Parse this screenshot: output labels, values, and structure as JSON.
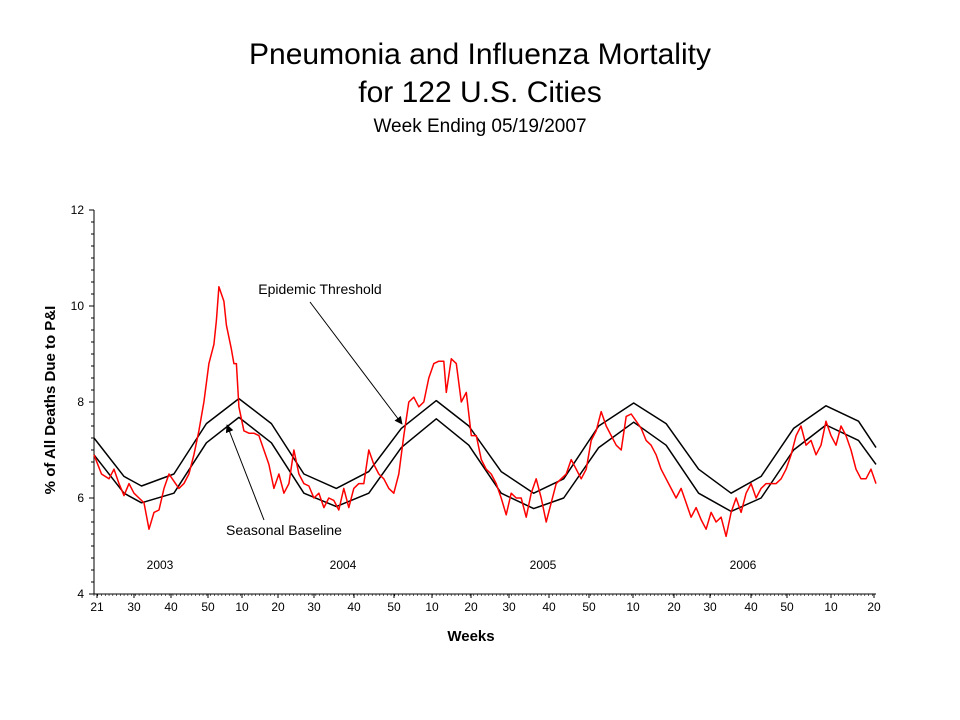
{
  "chart_data": {
    "type": "line",
    "title_lines": [
      "Pneumonia and Influenza Mortality",
      "for 122 U.S. Cities"
    ],
    "subtitle": "Week Ending 05/19/2007",
    "xlabel": "Weeks",
    "ylabel": "% of All Deaths Due to P&I",
    "ylim": [
      4,
      12
    ],
    "y_ticks": [
      4,
      6,
      8,
      10,
      12
    ],
    "x_ticks": [
      "21",
      "30",
      "40",
      "50",
      "10",
      "20",
      "30",
      "40",
      "50",
      "10",
      "20",
      "30",
      "40",
      "50",
      "10",
      "20",
      "30",
      "40",
      "50",
      "10",
      "20"
    ],
    "years": [
      "2003",
      "2004",
      "2005",
      "2006"
    ],
    "annotations": [
      {
        "text": "Epidemic Threshold",
        "target_week": 66
      },
      {
        "text": "Seasonal Baseline",
        "target_week": 27
      }
    ],
    "series": [
      {
        "name": "Epidemic Threshold",
        "color": "#000000",
        "points": [
          [
            0,
            7.25
          ],
          [
            12,
            6.45
          ],
          [
            19,
            6.25
          ],
          [
            32,
            6.5
          ],
          [
            45,
            7.55
          ],
          [
            58,
            8.07
          ],
          [
            71,
            7.55
          ],
          [
            84,
            6.5
          ],
          [
            97,
            6.2
          ],
          [
            110,
            6.55
          ],
          [
            123,
            7.45
          ],
          [
            137,
            8.03
          ],
          [
            150,
            7.5
          ],
          [
            163,
            6.55
          ],
          [
            176,
            6.1
          ],
          [
            188,
            6.4
          ],
          [
            202,
            7.5
          ],
          [
            216,
            7.98
          ],
          [
            229,
            7.55
          ],
          [
            242,
            6.6
          ],
          [
            255,
            6.1
          ],
          [
            267,
            6.45
          ],
          [
            280,
            7.45
          ],
          [
            293,
            7.92
          ],
          [
            306,
            7.6
          ],
          [
            313,
            7.05
          ]
        ]
      },
      {
        "name": "Seasonal Baseline",
        "color": "#000000",
        "points": [
          [
            0,
            6.9
          ],
          [
            12,
            6.1
          ],
          [
            19,
            5.9
          ],
          [
            32,
            6.1
          ],
          [
            45,
            7.15
          ],
          [
            58,
            7.68
          ],
          [
            71,
            7.15
          ],
          [
            84,
            6.1
          ],
          [
            97,
            5.82
          ],
          [
            110,
            6.1
          ],
          [
            123,
            7.05
          ],
          [
            137,
            7.65
          ],
          [
            150,
            7.1
          ],
          [
            163,
            6.1
          ],
          [
            176,
            5.78
          ],
          [
            188,
            6.0
          ],
          [
            202,
            7.05
          ],
          [
            216,
            7.58
          ],
          [
            229,
            7.1
          ],
          [
            242,
            6.1
          ],
          [
            255,
            5.72
          ],
          [
            267,
            6.0
          ],
          [
            280,
            7.0
          ],
          [
            293,
            7.52
          ],
          [
            306,
            7.2
          ],
          [
            313,
            6.7
          ]
        ]
      },
      {
        "name": "% of All Deaths Due to P&I",
        "color": "#ff0000",
        "points": [
          [
            0,
            6.9
          ],
          [
            3,
            6.5
          ],
          [
            6,
            6.4
          ],
          [
            8,
            6.6
          ],
          [
            10,
            6.3
          ],
          [
            12,
            6.05
          ],
          [
            14,
            6.3
          ],
          [
            16,
            6.1
          ],
          [
            18,
            6.0
          ],
          [
            20,
            5.9
          ],
          [
            22,
            5.35
          ],
          [
            24,
            5.7
          ],
          [
            26,
            5.75
          ],
          [
            28,
            6.2
          ],
          [
            30,
            6.5
          ],
          [
            32,
            6.35
          ],
          [
            34,
            6.2
          ],
          [
            36,
            6.3
          ],
          [
            38,
            6.5
          ],
          [
            40,
            6.9
          ],
          [
            42,
            7.4
          ],
          [
            44,
            8.0
          ],
          [
            46,
            8.8
          ],
          [
            48,
            9.2
          ],
          [
            49,
            9.7
          ],
          [
            50,
            10.4
          ],
          [
            52,
            10.1
          ],
          [
            53,
            9.6
          ],
          [
            55,
            9.1
          ],
          [
            56,
            8.8
          ],
          [
            57,
            8.8
          ],
          [
            58,
            7.9
          ],
          [
            60,
            7.4
          ],
          [
            62,
            7.35
          ],
          [
            64,
            7.35
          ],
          [
            66,
            7.3
          ],
          [
            68,
            7.0
          ],
          [
            70,
            6.7
          ],
          [
            72,
            6.2
          ],
          [
            74,
            6.5
          ],
          [
            76,
            6.1
          ],
          [
            78,
            6.3
          ],
          [
            80,
            7.0
          ],
          [
            82,
            6.5
          ],
          [
            84,
            6.3
          ],
          [
            86,
            6.25
          ],
          [
            88,
            6.0
          ],
          [
            90,
            6.1
          ],
          [
            92,
            5.8
          ],
          [
            94,
            6.0
          ],
          [
            96,
            5.95
          ],
          [
            98,
            5.75
          ],
          [
            100,
            6.2
          ],
          [
            102,
            5.8
          ],
          [
            104,
            6.2
          ],
          [
            106,
            6.3
          ],
          [
            108,
            6.3
          ],
          [
            110,
            7.0
          ],
          [
            112,
            6.7
          ],
          [
            114,
            6.5
          ],
          [
            116,
            6.4
          ],
          [
            118,
            6.2
          ],
          [
            120,
            6.1
          ],
          [
            122,
            6.5
          ],
          [
            124,
            7.3
          ],
          [
            126,
            8.0
          ],
          [
            128,
            8.1
          ],
          [
            130,
            7.9
          ],
          [
            132,
            8.0
          ],
          [
            134,
            8.5
          ],
          [
            136,
            8.8
          ],
          [
            138,
            8.85
          ],
          [
            140,
            8.85
          ],
          [
            141,
            8.2
          ],
          [
            143,
            8.9
          ],
          [
            145,
            8.8
          ],
          [
            147,
            8.0
          ],
          [
            149,
            8.2
          ],
          [
            151,
            7.3
          ],
          [
            153,
            7.3
          ],
          [
            155,
            6.8
          ],
          [
            157,
            6.6
          ],
          [
            159,
            6.5
          ],
          [
            161,
            6.3
          ],
          [
            163,
            6.0
          ],
          [
            165,
            5.65
          ],
          [
            167,
            6.1
          ],
          [
            169,
            6.0
          ],
          [
            171,
            6.0
          ],
          [
            173,
            5.6
          ],
          [
            175,
            6.1
          ],
          [
            177,
            6.4
          ],
          [
            179,
            6.0
          ],
          [
            181,
            5.5
          ],
          [
            183,
            5.9
          ],
          [
            185,
            6.3
          ],
          [
            187,
            6.4
          ],
          [
            189,
            6.5
          ],
          [
            191,
            6.8
          ],
          [
            193,
            6.6
          ],
          [
            195,
            6.4
          ],
          [
            197,
            6.6
          ],
          [
            199,
            7.2
          ],
          [
            201,
            7.4
          ],
          [
            203,
            7.8
          ],
          [
            205,
            7.5
          ],
          [
            207,
            7.3
          ],
          [
            209,
            7.1
          ],
          [
            211,
            7.0
          ],
          [
            213,
            7.7
          ],
          [
            215,
            7.75
          ],
          [
            217,
            7.6
          ],
          [
            219,
            7.45
          ],
          [
            221,
            7.2
          ],
          [
            223,
            7.1
          ],
          [
            225,
            6.9
          ],
          [
            227,
            6.6
          ],
          [
            229,
            6.4
          ],
          [
            231,
            6.2
          ],
          [
            233,
            6.0
          ],
          [
            235,
            6.2
          ],
          [
            237,
            5.9
          ],
          [
            239,
            5.6
          ],
          [
            241,
            5.8
          ],
          [
            243,
            5.55
          ],
          [
            245,
            5.35
          ],
          [
            247,
            5.7
          ],
          [
            249,
            5.5
          ],
          [
            251,
            5.6
          ],
          [
            253,
            5.2
          ],
          [
            255,
            5.7
          ],
          [
            257,
            6.0
          ],
          [
            259,
            5.7
          ],
          [
            261,
            6.1
          ],
          [
            263,
            6.3
          ],
          [
            265,
            6.0
          ],
          [
            267,
            6.2
          ],
          [
            269,
            6.3
          ],
          [
            271,
            6.3
          ],
          [
            273,
            6.3
          ],
          [
            275,
            6.4
          ],
          [
            277,
            6.6
          ],
          [
            279,
            6.9
          ],
          [
            281,
            7.3
          ],
          [
            283,
            7.5
          ],
          [
            285,
            7.1
          ],
          [
            287,
            7.2
          ],
          [
            289,
            6.9
          ],
          [
            291,
            7.1
          ],
          [
            293,
            7.6
          ],
          [
            295,
            7.3
          ],
          [
            297,
            7.1
          ],
          [
            299,
            7.5
          ],
          [
            301,
            7.3
          ],
          [
            303,
            7.0
          ],
          [
            305,
            6.6
          ],
          [
            307,
            6.4
          ],
          [
            309,
            6.4
          ],
          [
            311,
            6.6
          ],
          [
            313,
            6.3
          ]
        ]
      }
    ]
  }
}
